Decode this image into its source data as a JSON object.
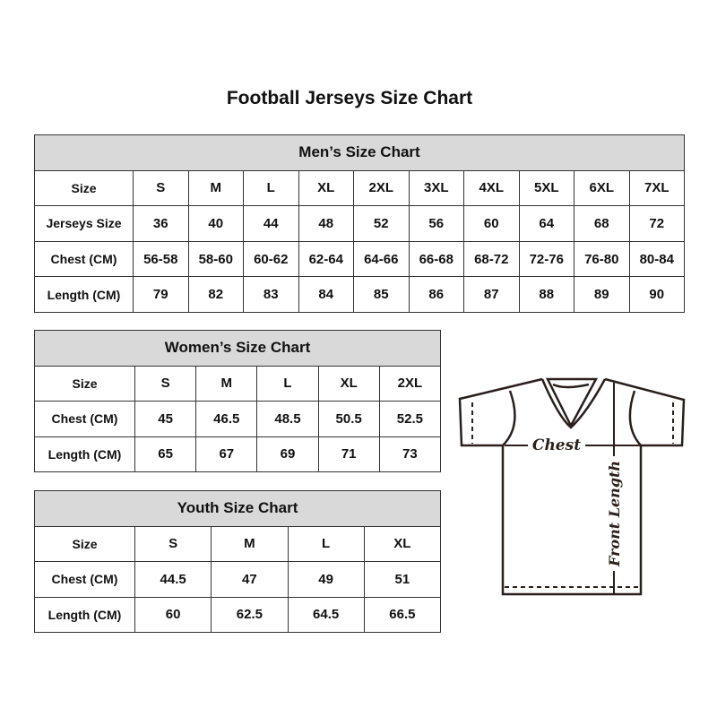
{
  "title": "Football Jerseys Size Chart",
  "men": {
    "caption": "Men’s Size Chart",
    "rows": [
      [
        "Size",
        "S",
        "M",
        "L",
        "XL",
        "2XL",
        "3XL",
        "4XL",
        "5XL",
        "6XL",
        "7XL"
      ],
      [
        "Jerseys Size",
        "36",
        "40",
        "44",
        "48",
        "52",
        "56",
        "60",
        "64",
        "68",
        "72"
      ],
      [
        "Chest (CM)",
        "56-58",
        "58-60",
        "60-62",
        "62-64",
        "64-66",
        "66-68",
        "68-72",
        "72-76",
        "76-80",
        "80-84"
      ],
      [
        "Length (CM)",
        "79",
        "82",
        "83",
        "84",
        "85",
        "86",
        "87",
        "88",
        "89",
        "90"
      ]
    ]
  },
  "women": {
    "caption": "Women’s Size Chart",
    "rows": [
      [
        "Size",
        "S",
        "M",
        "L",
        "XL",
        "2XL"
      ],
      [
        "Chest (CM)",
        "45",
        "46.5",
        "48.5",
        "50.5",
        "52.5"
      ],
      [
        "Length (CM)",
        "65",
        "67",
        "69",
        "71",
        "73"
      ]
    ]
  },
  "youth": {
    "caption": "Youth Size Chart",
    "rows": [
      [
        "Size",
        "S",
        "M",
        "L",
        "XL"
      ],
      [
        "Chest (CM)",
        "44.5",
        "47",
        "49",
        "51"
      ],
      [
        "Length (CM)",
        "60",
        "62.5",
        "64.5",
        "66.5"
      ]
    ]
  },
  "diagram": {
    "chest_label": "Chest",
    "length_label": "Front Length"
  }
}
